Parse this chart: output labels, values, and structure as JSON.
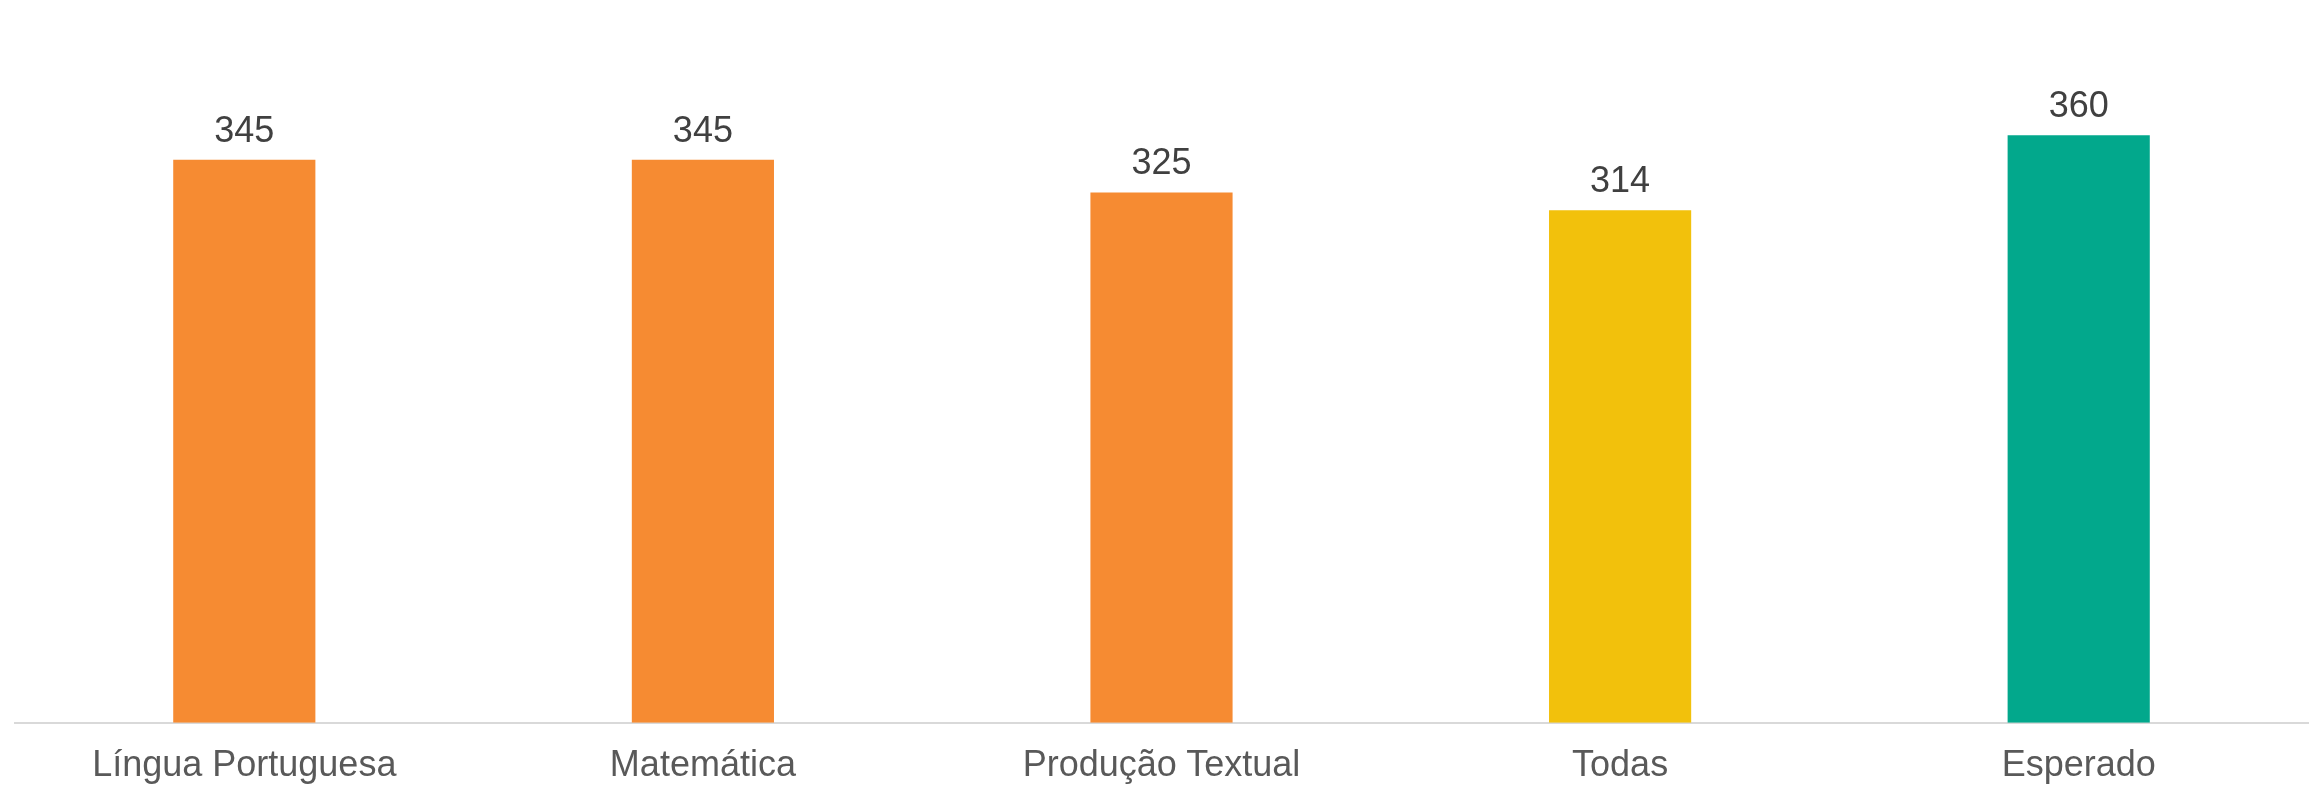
{
  "chart_data": {
    "type": "bar",
    "categories": [
      "Língua Portuguesa",
      "Matemática",
      "Produção Textual",
      "Todas",
      "Esperado"
    ],
    "values": [
      345,
      345,
      325,
      314,
      360
    ],
    "colors": [
      "#f68b32",
      "#f68b32",
      "#f68b32",
      "#f2c10c",
      "#02a88c"
    ],
    "data_labels": true,
    "grid": false,
    "legend": false,
    "tick_labels": "x"
  }
}
